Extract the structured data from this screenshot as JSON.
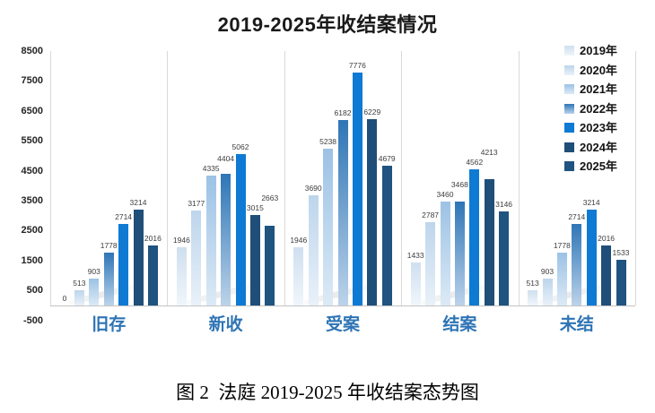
{
  "page": {
    "title": "2019-2025年收结案情况",
    "caption": "图 2  法庭 2019-2025 年收结案态势图"
  },
  "chart_data": {
    "type": "bar",
    "title": "2019-2025年收结案情况",
    "categories": [
      "旧存",
      "新收",
      "受案",
      "结案",
      "未结"
    ],
    "series": [
      {
        "name": "2019年",
        "color_top": "#cfdfef",
        "color_bottom": "#f0f6fb",
        "values": [
          0,
          1946,
          1946,
          1433,
          513
        ]
      },
      {
        "name": "2020年",
        "color_top": "#bdd5ec",
        "color_bottom": "#e9f1f9",
        "values": [
          513,
          3177,
          3690,
          2787,
          903
        ]
      },
      {
        "name": "2021年",
        "color_top": "#9cc2e5",
        "color_bottom": "#dceaf6",
        "values": [
          903,
          4335,
          5238,
          3460,
          1778
        ]
      },
      {
        "name": "2022年",
        "color_top": "#2e75b6",
        "color_bottom": "#bcd3ea",
        "values": [
          1778,
          4404,
          6182,
          3468,
          2714
        ]
      },
      {
        "name": "2023年",
        "color_top": "#0e7ad4",
        "color_bottom": "#0e7ad4",
        "values": [
          2714,
          5062,
          7776,
          4562,
          3214
        ]
      },
      {
        "name": "2024年",
        "color_top": "#1f4e79",
        "color_bottom": "#1f4e79",
        "values": [
          3214,
          3015,
          6229,
          4213,
          2016
        ]
      },
      {
        "name": "2025年",
        "color_top": "#1f5380",
        "color_bottom": "#1f5380",
        "values": [
          2016,
          2663,
          4679,
          3146,
          1533
        ]
      }
    ],
    "ylim": [
      -500,
      8500
    ],
    "yticks": [
      8500,
      7500,
      6500,
      5500,
      4500,
      3500,
      2500,
      1500,
      500,
      -500
    ],
    "grid": "off",
    "legend_position": "right",
    "xlabel": "",
    "ylabel": "",
    "category_label_color": "#2e74b5",
    "separator_color": "#d9d9d9",
    "baseline_color": "#c3c3c3",
    "tick_label_color": "#242424",
    "value_label_color": "#3d3d3d"
  }
}
